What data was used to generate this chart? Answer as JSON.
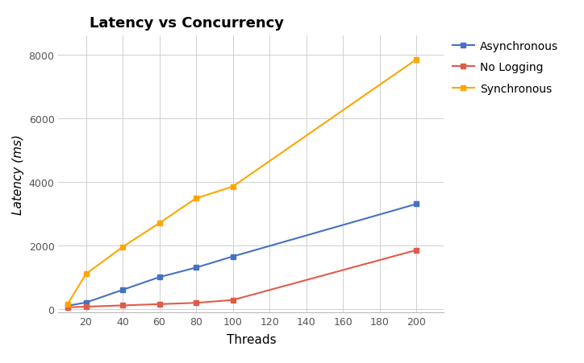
{
  "title": "Latency vs Concurrency",
  "xlabel": "Threads",
  "ylabel": "Latency (ms)",
  "x_values": [
    10,
    20,
    40,
    60,
    80,
    100,
    200
  ],
  "series": [
    {
      "label": "Asynchronous",
      "color": "#4472C4",
      "marker": "s",
      "values": [
        100,
        200,
        600,
        1000,
        1300,
        1650,
        3300
      ]
    },
    {
      "label": "No Logging",
      "color": "#E05C4A",
      "marker": "s",
      "values": [
        50,
        70,
        110,
        150,
        190,
        280,
        1850
      ]
    },
    {
      "label": "Synchronous",
      "color": "#FFA500",
      "marker": "s",
      "values": [
        150,
        1100,
        1950,
        2700,
        3480,
        3850,
        7850
      ]
    }
  ],
  "xlim": [
    5,
    215
  ],
  "ylim": [
    -100,
    8600
  ],
  "xticks": [
    20,
    40,
    60,
    80,
    100,
    120,
    140,
    160,
    180,
    200
  ],
  "yticks": [
    0,
    2000,
    4000,
    6000,
    8000
  ],
  "background_color": "#ffffff",
  "grid_color": "#d0d0d0",
  "title_fontsize": 13,
  "label_fontsize": 11,
  "tick_fontsize": 9,
  "legend_fontsize": 10
}
